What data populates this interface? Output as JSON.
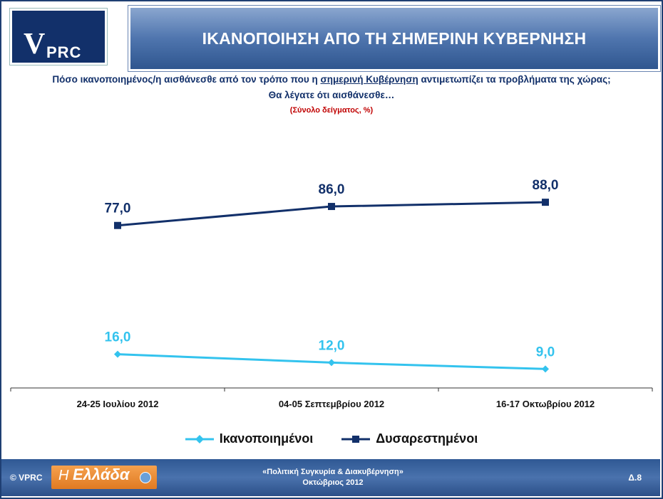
{
  "header": {
    "logo_v": "V",
    "logo_prc": "PRC",
    "title": "ΙΚΑΝΟΠΟΙΗΣΗ ΑΠΟ ΤΗ ΣΗΜΕΡΙΝΗ ΚΥΒΕΡΝΗΣΗ"
  },
  "question": {
    "part1": "Πόσο ικανοποιημένος/η  αισθάνεσθε  από τον τρόπο που η ",
    "underlined": "σημερινή Κυβέρνηση",
    "part2": " αντιμετωπίζει τα προβλήματα της χώρας;",
    "line2": "Θα λέγατε ότι αισθάνεσθε…",
    "note": "(Σύνολο δείγματος, %)"
  },
  "chart_data": {
    "type": "line",
    "categories": [
      "24-25 Ιουλίου 2012",
      "04-05 Σεπτεμβρίου 2012",
      "16-17 Οκτωβρίου 2012"
    ],
    "series": [
      {
        "name": "Ικανοποιημένοι",
        "values": [
          16.0,
          12.0,
          9.0
        ],
        "labels": [
          "16,0",
          "12,0",
          "9,0"
        ],
        "color": "#33c3ee",
        "marker": "diamond"
      },
      {
        "name": "Δυσαρεστημένοι",
        "values": [
          77.0,
          86.0,
          88.0
        ],
        "labels": [
          "77,0",
          "86,0",
          "88,0"
        ],
        "color": "#12306a",
        "marker": "square"
      }
    ],
    "ylim": [
      0,
      100
    ],
    "grid": false,
    "legend": "bottom"
  },
  "footer": {
    "copyright": "© VPRC",
    "brand_h": "Η",
    "brand_word": "Ελλάδα",
    "line1": "«Πολιτική Συγκυρία & Διακυβέρνηση»",
    "line2": "Οκτώβριος  2012",
    "page": "Δ.8"
  },
  "colors": {
    "navy": "#12306a",
    "cyan": "#33c3ee",
    "note_red": "#c00000"
  }
}
